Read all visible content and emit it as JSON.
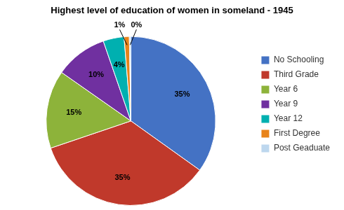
{
  "chart_data": {
    "type": "pie",
    "title": "Highest level of education of women in someland - 1945",
    "categories": [
      "No Schooling",
      "Third Grade",
      "Year 6",
      "Year 9",
      "Year 12",
      "First Degree",
      "Post Geaduate"
    ],
    "values": [
      35,
      35,
      15,
      10,
      4,
      1,
      0.3
    ],
    "value_labels": [
      "35%",
      "35%",
      "15%",
      "10%",
      "4%",
      "1%",
      "0%"
    ],
    "colors": [
      "#4472C4",
      "#C0392B",
      "#8DB33A",
      "#7030A0",
      "#00B0B0",
      "#E8831A",
      "#BDD7EE"
    ],
    "data_labels": true,
    "legend": "right"
  }
}
